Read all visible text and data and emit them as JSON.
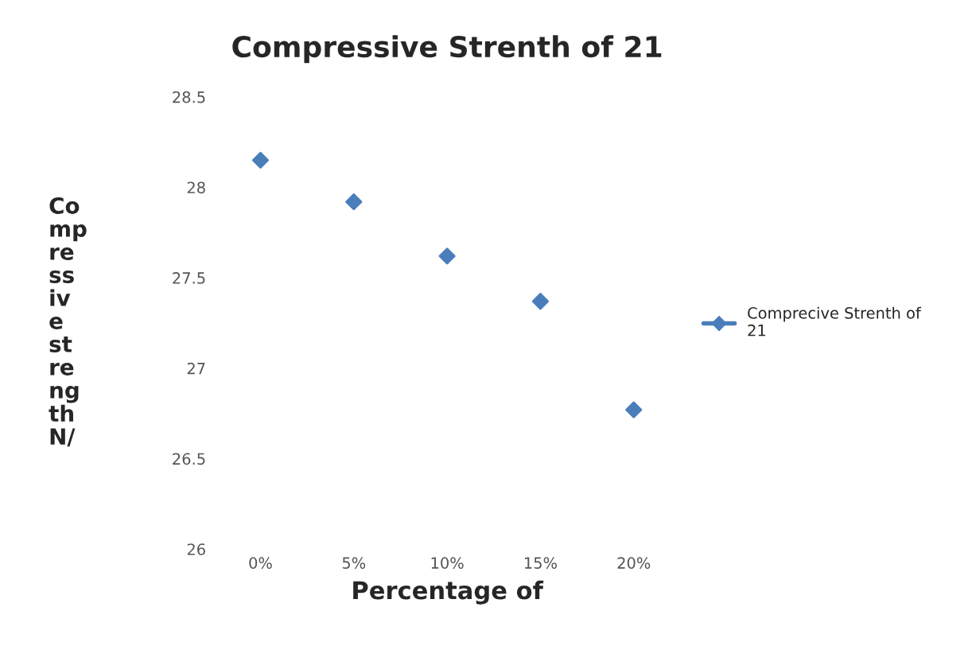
{
  "chart_data": {
    "type": "scatter",
    "title": "Compressive Strenth of 21",
    "xlabel": "Percentage of",
    "ylabel": "Compressive strength N/",
    "categories": [
      "0%",
      "5%",
      "10%",
      "15%",
      "20%"
    ],
    "series": [
      {
        "name": "Comprecive Strenth of 21",
        "color": "#4a7ebb",
        "values": [
          28.15,
          27.92,
          27.62,
          27.37,
          26.77
        ]
      }
    ],
    "ylim": [
      26,
      28.5
    ],
    "yticks": [
      26,
      26.5,
      27,
      27.5,
      28,
      28.5
    ],
    "grid": false,
    "legend": "right",
    "marker": "diamond"
  }
}
